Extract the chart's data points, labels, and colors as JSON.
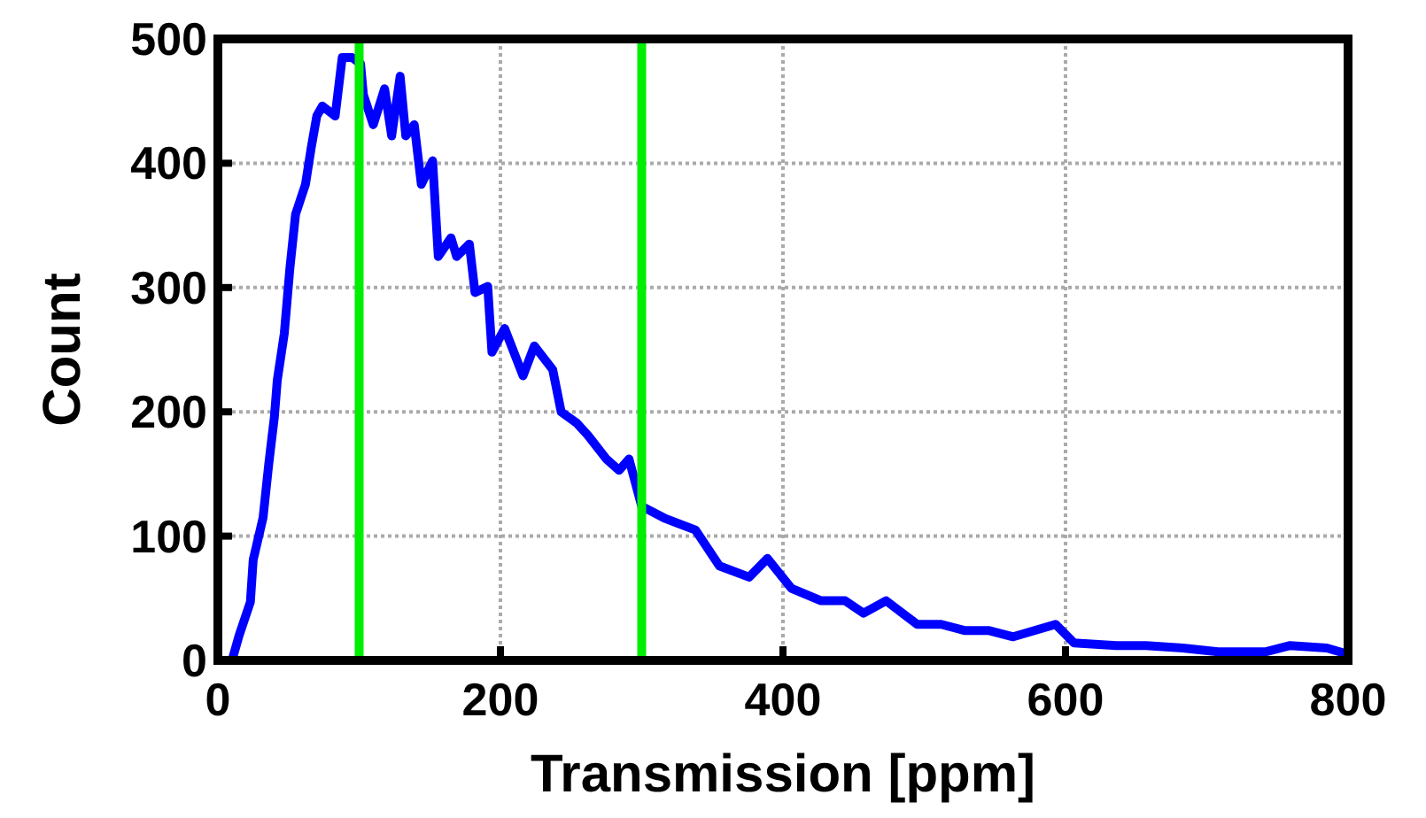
{
  "chart_data": {
    "type": "line",
    "xlabel": "Transmission [ppm]",
    "ylabel": "Count",
    "xlim": [
      0,
      800
    ],
    "ylim": [
      0,
      500
    ],
    "xticks": [
      0,
      200,
      400,
      600,
      800
    ],
    "yticks": [
      0,
      100,
      200,
      300,
      400,
      500
    ],
    "grid": true,
    "series": [
      {
        "color": "#0000ff",
        "x": [
          10,
          15,
          23,
          25,
          32,
          36,
          40,
          42,
          47,
          51,
          55,
          62,
          66,
          70,
          74,
          83,
          88,
          95,
          101,
          103,
          110,
          118,
          123,
          129,
          133,
          139,
          144,
          152,
          156,
          165,
          169,
          178,
          182,
          191,
          194,
          203,
          216,
          224,
          237,
          243,
          254,
          262,
          275,
          284,
          291,
          300,
          317,
          338,
          355,
          376,
          389,
          406,
          427,
          444,
          457,
          473,
          495,
          512,
          529,
          546,
          563,
          593,
          606,
          636,
          657,
          683,
          708,
          742,
          759,
          785,
          800
        ],
        "values": [
          0,
          20,
          47,
          81,
          115,
          158,
          196,
          225,
          263,
          316,
          359,
          383,
          412,
          438,
          446,
          438,
          485,
          485,
          480,
          455,
          431,
          460,
          422,
          470,
          422,
          431,
          383,
          402,
          325,
          340,
          325,
          335,
          296,
          301,
          248,
          267,
          229,
          253,
          234,
          200,
          191,
          181,
          162,
          153,
          162,
          124,
          114,
          105,
          76,
          67,
          82,
          58,
          48,
          48,
          38,
          48,
          29,
          29,
          24,
          24,
          19,
          29,
          14,
          12,
          12,
          10,
          7,
          7,
          12,
          10,
          5
        ]
      }
    ],
    "ref_lines": [
      {
        "axis": "x",
        "value": 100,
        "color": "#00ee00"
      },
      {
        "axis": "x",
        "value": 300,
        "color": "#00ee00"
      }
    ]
  }
}
